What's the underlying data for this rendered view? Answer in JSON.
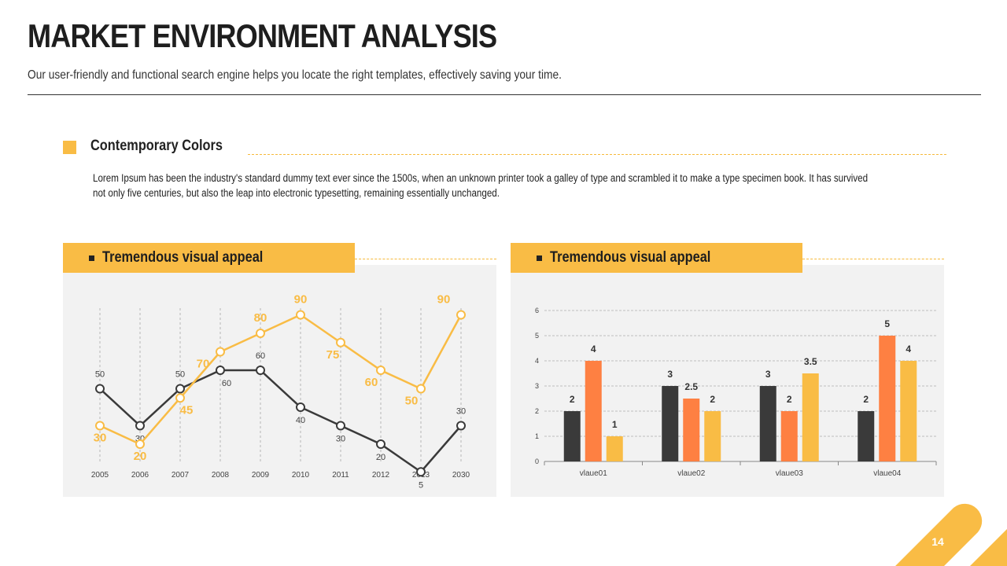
{
  "header": {
    "title": "MARKET ENVIRONMENT ANALYSIS",
    "subtitle": "Our user-friendly and functional search engine helps you locate the right templates, effectively saving your time."
  },
  "section": {
    "title": "Contemporary Colors",
    "body": "Lorem Ipsum has been the industry's standard dummy text ever since the 1500s, when an unknown printer took a galley of type and scrambled it to make a type specimen book. It has survived not only five centuries, but also the leap into electronic typesetting, remaining essentially unchanged."
  },
  "panels": [
    {
      "title": "Tremendous visual appeal"
    },
    {
      "title": "Tremendous visual appeal"
    }
  ],
  "colors": {
    "accent": "#f9bc45",
    "dark": "#3a3a3a",
    "orange": "#fe8042",
    "panel_bg": "#f2f2f2"
  },
  "chart_data": [
    {
      "type": "line",
      "x": [
        "2005",
        "2006",
        "2007",
        "2008",
        "2009",
        "2010",
        "2011",
        "2012",
        "2013",
        "2030"
      ],
      "ylim": [
        0,
        100
      ],
      "grid": "vertical dashed",
      "series": [
        {
          "color": "#3a3a3a",
          "values": [
            50,
            30,
            50,
            60,
            60,
            40,
            30,
            20,
            5,
            30
          ]
        },
        {
          "color": "#f9bc45",
          "values": [
            30,
            20,
            45,
            70,
            80,
            90,
            75,
            60,
            50,
            90
          ]
        }
      ]
    },
    {
      "type": "bar",
      "categories": [
        "vlaue01",
        "vlaue02",
        "vlaue03",
        "vlaue04"
      ],
      "ylim": [
        0,
        6
      ],
      "yticks": [
        "0",
        "1",
        "2",
        "3",
        "4",
        "5",
        "6"
      ],
      "grid": "horizontal dashed",
      "series": [
        {
          "color": "#3a3a3a",
          "values": [
            2,
            3,
            3,
            2
          ]
        },
        {
          "color": "#fe8042",
          "values": [
            4,
            2.5,
            2,
            5
          ]
        },
        {
          "color": "#f9bc45",
          "values": [
            1,
            2,
            3.5,
            4
          ]
        }
      ]
    }
  ],
  "footer": {
    "page_number": "14"
  }
}
